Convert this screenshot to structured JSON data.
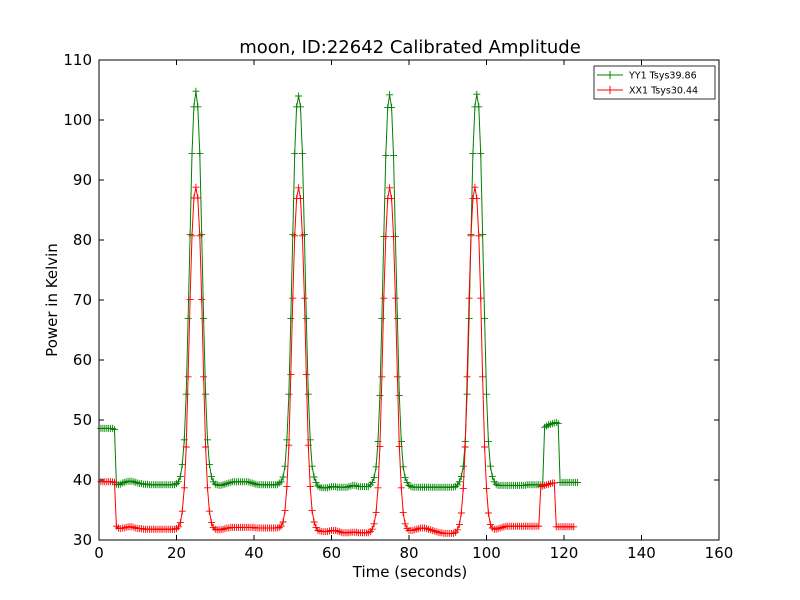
{
  "chart_data": {
    "type": "line",
    "title": "moon, ID:22642 Calibrated Amplitude",
    "xlabel": "Time (seconds)",
    "ylabel": "Power in Kelvin",
    "xlim": [
      0,
      160
    ],
    "ylim": [
      30,
      110
    ],
    "xticks": [
      0,
      20,
      40,
      60,
      80,
      100,
      120,
      140,
      160
    ],
    "yticks": [
      30,
      40,
      50,
      60,
      70,
      80,
      90,
      100,
      110
    ],
    "grid": false,
    "legend_position": "top-right",
    "marker": "+",
    "sample_interval": 0.5,
    "series": [
      {
        "name": "YY1 Tsys39.86",
        "color": "#008000",
        "x_start": 0.5,
        "values": [
          48.6,
          48.6,
          48.6,
          48.6,
          48.6,
          48.6,
          48.6,
          48.4,
          39.3,
          39.2,
          39.3,
          39.5,
          39.6,
          39.7,
          39.8,
          39.8,
          39.8,
          39.7,
          39.6,
          39.5,
          39.4,
          39.4,
          39.3,
          39.3,
          39.3,
          39.2,
          39.2,
          39.2,
          39.2,
          39.2,
          39.2,
          39.2,
          39.2,
          39.2,
          39.2,
          39.2,
          39.2,
          39.2,
          39.2,
          39.4,
          39.7,
          40.6,
          42.6,
          46.7,
          54.3,
          66.9,
          80.9,
          94.4,
          102.2,
          104.8,
          102.2,
          94.4,
          80.9,
          66.9,
          54.3,
          46.7,
          42.6,
          40.6,
          39.7,
          39.3,
          39.2,
          39.1,
          39.1,
          39.2,
          39.3,
          39.4,
          39.5,
          39.6,
          39.7,
          39.7,
          39.7,
          39.7,
          39.7,
          39.7,
          39.7,
          39.7,
          39.7,
          39.6,
          39.5,
          39.4,
          39.3,
          39.2,
          39.2,
          39.2,
          39.2,
          39.2,
          39.2,
          39.2,
          39.2,
          39.2,
          39.2,
          39.2,
          39.5,
          39.7,
          40.5,
          42.3,
          46.7,
          54.3,
          66.9,
          80.9,
          94.4,
          102.2,
          104.0,
          102.2,
          94.4,
          80.9,
          66.9,
          54.3,
          46.7,
          42.3,
          40.5,
          39.6,
          39.0,
          38.8,
          38.7,
          38.7,
          38.7,
          38.7,
          38.8,
          38.9,
          38.9,
          38.9,
          38.8,
          38.8,
          38.8,
          38.8,
          38.8,
          38.8,
          38.9,
          39.0,
          39.1,
          39.1,
          39.0,
          38.9,
          38.9,
          38.9,
          38.9,
          38.9,
          38.9,
          39.2,
          39.6,
          40.4,
          42.2,
          46.4,
          54.1,
          66.9,
          80.6,
          94.1,
          102.1,
          104.2,
          102.1,
          94.1,
          80.6,
          66.9,
          54.1,
          46.4,
          42.2,
          40.4,
          39.6,
          39.1,
          38.9,
          38.8,
          38.8,
          38.8,
          38.8,
          38.8,
          38.8,
          38.8,
          38.8,
          38.8,
          38.8,
          38.8,
          38.8,
          38.8,
          38.8,
          38.8,
          38.8,
          38.8,
          38.8,
          38.8,
          38.8,
          38.8,
          38.8,
          38.9,
          39.2,
          39.7,
          40.6,
          42.3,
          46.4,
          54.3,
          66.9,
          80.9,
          94.4,
          102.2,
          104.3,
          102.2,
          94.4,
          80.9,
          66.9,
          54.3,
          46.4,
          42.3,
          40.6,
          39.7,
          39.3,
          39.1,
          39.1,
          39.1,
          39.1,
          39.1,
          39.1,
          39.1,
          39.1,
          39.1,
          39.1,
          39.1,
          39.1,
          39.1,
          39.1,
          39.1,
          39.2,
          39.2,
          39.2,
          39.2,
          39.2,
          39.2,
          39.2,
          39.2,
          39.2,
          48.8,
          49.0,
          49.2,
          49.3,
          49.4,
          49.5,
          49.6,
          49.4,
          39.6,
          39.6,
          39.6,
          39.6,
          39.6,
          39.6,
          39.6,
          39.6,
          39.6,
          39.6
        ]
      },
      {
        "name": "XX1 Tsys30.44",
        "color": "#ff0000",
        "x_start": 0.5,
        "values": [
          39.7,
          39.7,
          39.7,
          39.7,
          39.7,
          39.7,
          39.7,
          39.6,
          32.3,
          32.0,
          31.9,
          32.0,
          32.0,
          32.1,
          32.2,
          32.2,
          32.2,
          32.1,
          32.0,
          31.9,
          31.9,
          31.9,
          31.8,
          31.8,
          31.8,
          31.8,
          31.8,
          31.8,
          31.8,
          31.8,
          31.8,
          31.8,
          31.8,
          31.8,
          31.8,
          31.8,
          31.8,
          31.8,
          31.8,
          31.9,
          32.2,
          32.9,
          34.8,
          38.7,
          45.5,
          57.2,
          70.1,
          80.7,
          87.0,
          88.8,
          87.0,
          80.7,
          70.1,
          57.2,
          45.5,
          38.7,
          34.8,
          32.9,
          32.1,
          31.8,
          31.7,
          31.7,
          31.7,
          31.8,
          31.9,
          32.0,
          32.0,
          32.1,
          32.1,
          32.1,
          32.1,
          32.1,
          32.1,
          32.1,
          32.1,
          32.1,
          32.1,
          32.1,
          32.1,
          32.1,
          32.0,
          32.0,
          32.0,
          32.0,
          32.0,
          32.0,
          32.0,
          32.0,
          32.0,
          32.0,
          32.0,
          32.0,
          32.1,
          32.3,
          33.0,
          34.9,
          38.9,
          45.8,
          57.6,
          70.3,
          80.7,
          86.9,
          88.7,
          86.9,
          80.7,
          70.3,
          57.6,
          45.8,
          38.9,
          34.9,
          33.0,
          32.1,
          31.6,
          31.5,
          31.4,
          31.4,
          31.4,
          31.4,
          31.5,
          31.6,
          31.6,
          31.6,
          31.5,
          31.4,
          31.3,
          31.2,
          31.2,
          31.2,
          31.2,
          31.3,
          31.3,
          31.3,
          31.3,
          31.2,
          31.2,
          31.2,
          31.2,
          31.2,
          31.2,
          31.4,
          31.8,
          32.7,
          34.6,
          38.7,
          45.6,
          57.2,
          70.3,
          80.6,
          86.9,
          88.7,
          86.9,
          80.6,
          70.3,
          57.2,
          45.6,
          38.7,
          34.6,
          32.7,
          31.9,
          31.6,
          31.6,
          31.6,
          31.7,
          31.8,
          31.9,
          32.0,
          32.0,
          32.0,
          31.9,
          31.8,
          31.7,
          31.6,
          31.5,
          31.4,
          31.3,
          31.2,
          31.2,
          31.1,
          31.1,
          31.1,
          31.1,
          31.1,
          31.1,
          31.3,
          31.7,
          32.6,
          34.5,
          38.6,
          45.5,
          57.2,
          70.3,
          80.7,
          86.9,
          88.8,
          86.9,
          80.7,
          70.3,
          57.2,
          45.5,
          38.6,
          34.5,
          32.6,
          32.0,
          31.8,
          31.8,
          31.9,
          32.0,
          32.1,
          32.2,
          32.3,
          32.3,
          32.3,
          32.3,
          32.3,
          32.3,
          32.3,
          32.3,
          32.3,
          32.3,
          32.3,
          32.3,
          32.3,
          32.3,
          32.3,
          32.3,
          32.3,
          32.3,
          38.9,
          39.0,
          39.1,
          39.2,
          39.3,
          39.4,
          39.5,
          39.5,
          32.2,
          32.2,
          32.2,
          32.2,
          32.2,
          32.2,
          32.2,
          32.2,
          32.2,
          32.2
        ]
      }
    ]
  }
}
